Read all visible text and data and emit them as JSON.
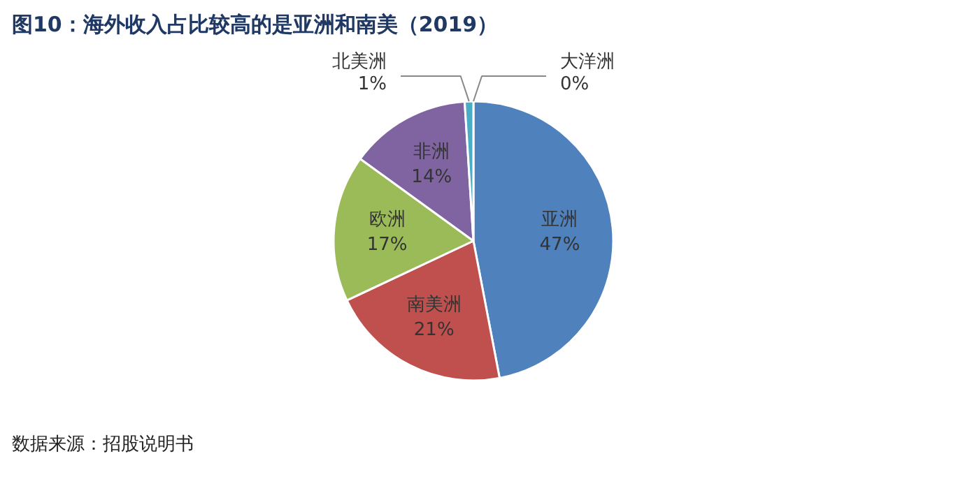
{
  "chart_data": {
    "type": "pie",
    "title": "图10：海外收入占比较高的是亚洲和南美（2019）",
    "categories": [
      "亚洲",
      "南美洲",
      "欧洲",
      "非洲",
      "北美洲",
      "大洋洲"
    ],
    "values": [
      47,
      21,
      17,
      14,
      1,
      0
    ],
    "value_labels": [
      "47%",
      "21%",
      "17%",
      "14%",
      "1%",
      "0%"
    ],
    "colors": [
      "#4f81bd",
      "#c0504d",
      "#9bbb59",
      "#8064a2",
      "#4bacc6",
      "#f79646"
    ],
    "annotations": [
      "数据来源：招股说明书"
    ]
  }
}
